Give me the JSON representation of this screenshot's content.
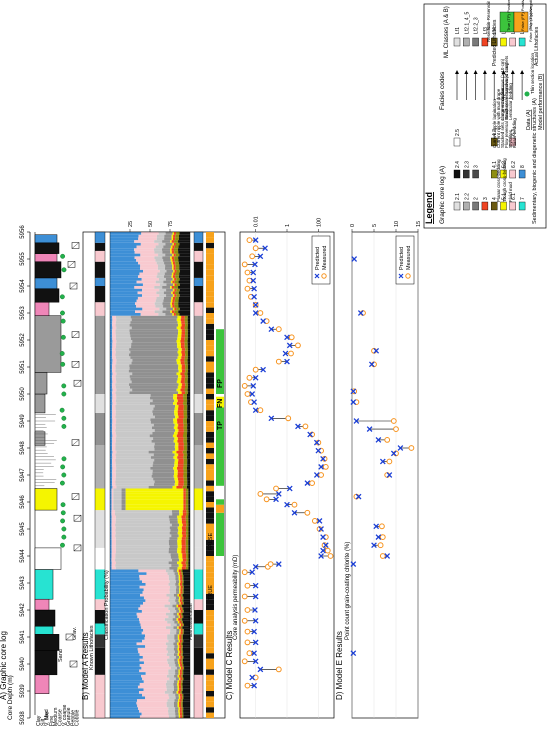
{
  "figure": {
    "panel_titles": {
      "a": "A) Graphic core log",
      "b": "B) Model A Results",
      "c": "C) Model C Results",
      "d": "D) Model E Results"
    },
    "depth_axis": {
      "label": "Core Depth (m)",
      "ticks": [
        "5938",
        "5939",
        "5940",
        "5941",
        "5942",
        "5943",
        "5944",
        "5945",
        "5946",
        "5947",
        "5948",
        "5949",
        "5950",
        "5951",
        "5952",
        "5953",
        "5954",
        "5955",
        "5956"
      ]
    },
    "grain_axis": {
      "labels": [
        "Clay",
        "Silt",
        "V. fine",
        "Fine",
        "Medium",
        "Coarse",
        "V. coarse",
        "Granule",
        "Pebble",
        "Cobble"
      ],
      "groups": [
        "Mud",
        "Sand",
        "Grav."
      ]
    },
    "model_a": {
      "known_label": "Known Lithofacies",
      "prob_label": "Classification Probability (%)",
      "prob_ticks": [
        "25",
        "50",
        "75"
      ],
      "final_label": "Final classification"
    },
    "performance_labels": {
      "true_label": "TRUE",
      "false_label": "FALSE",
      "tp": "TP",
      "fn": "FN",
      "fp": "FP"
    },
    "model_c": {
      "ylabel": "Core analysis permeability (mD)",
      "ticks": [
        "0.01",
        "1",
        "100"
      ],
      "legend": [
        "Measured",
        "Predicted"
      ]
    },
    "model_e": {
      "ylabel": "Point count grain-coating chlorite (%)",
      "ticks": [
        "0",
        "5",
        "10",
        "15"
      ],
      "legend": [
        "Measured",
        "Predicted"
      ]
    }
  },
  "legend": {
    "title": "Legend",
    "graphic_log_title": "Graphic core log (A)",
    "facies_codes_title": "Facies codes",
    "ml_classes_title": "ML Classes (A & B)",
    "facies": [
      {
        "codes": [
          "2.1",
          "2.4",
          "2.5"
        ],
        "ml": "Lf1",
        "colors": [
          "#e0e0e0",
          "#111111",
          "#ffffff"
        ]
      },
      {
        "codes": [
          "2.2",
          "2.3"
        ],
        "ml": "Lf2.1_4_5",
        "colors": [
          "#b0b0b0",
          "#333333",
          "#c8c8c8"
        ]
      },
      {
        "codes": [
          "2",
          "3"
        ],
        "ml": "Lf2.2_3",
        "colors": [
          "#7a7a7a",
          "#4a4a4a",
          "#909090"
        ]
      },
      {
        "codes": [
          "3"
        ],
        "ml": "Lf3",
        "colors": [
          "#ef4423"
        ]
      },
      {
        "codes": [
          "4",
          "4.1",
          "4.2"
        ],
        "ml": "Lf4",
        "colors": [
          "#6b5a12",
          "#8e8e10",
          "#6b5a12"
        ]
      },
      {
        "codes": [
          "5.1",
          "5.2"
        ],
        "ml": "Lf5",
        "colors": [
          "#f5f500",
          "#f5f500"
        ]
      },
      {
        "codes": [
          "6.1",
          "6.2",
          "6.3"
        ],
        "ml": "Lf6",
        "colors": [
          "#f8c9cf",
          "#f8c9cf",
          "#e8b5bd"
        ]
      },
      {
        "codes": [
          "7",
          "8"
        ],
        "ml": "Lf7_8",
        "colors": [
          "#27e3d2",
          "#3d8fd6"
        ]
      }
    ],
    "structures_title": "Sedimentary, biogenic and diagenetic structures (A)",
    "structures": [
      "Planar cross-bedding",
      "Trough cross-bedding",
      "Fluid mud",
      "Current ripple lamination",
      "Current ripple with mud drape",
      "Stacked sets of current ripples",
      "Flow reversal structures or sand-mud couplets",
      "Stylolites",
      "Flaser bedding",
      "Large-scale burrows (> 10 cm)",
      "Small-scale burrows (< 1cm)",
      "Lenticular bedding"
    ],
    "data_title": "Data (A)",
    "data_item": "Thin section location",
    "model_perf_title": "Model performance (B)",
    "predicted_label": "Predicted Lithofacies",
    "actual_label": "Actual Lithofacies",
    "reservoir": "Reservoir",
    "non_reservoir": "Non-Reservoir",
    "tp_text": "True (TP) Positive",
    "fn_text": "False (FN) Negative",
    "fp_text": "False (FP) Positive",
    "tn_text": "True (TN) Negative"
  },
  "chart_data": [
    {
      "type": "scatter",
      "title": "C) Model C Results",
      "ylabel": "Core analysis permeability (mD)",
      "log_scale": true,
      "ylim": [
        0.001,
        1000
      ],
      "x_label": "Core Depth (m)",
      "x_range": [
        5938,
        5956
      ],
      "series": [
        {
          "name": "Measured",
          "x": [
            5939.2,
            5939.5,
            5939.8,
            5940.1,
            5940.4,
            5940.8,
            5941.2,
            5941.6,
            5942.0,
            5942.5,
            5942.9,
            5943.4,
            5943.6,
            5943.7,
            5944.0,
            5944.2,
            5944.4,
            5944.7,
            5945.0,
            5945.3,
            5945.6,
            5945.9,
            5946.1,
            5946.3,
            5946.5,
            5946.7,
            5947.0,
            5947.3,
            5947.6,
            5947.9,
            5948.2,
            5948.5,
            5948.8,
            5949.1,
            5949.4,
            5949.7,
            5950.0,
            5950.3,
            5950.6,
            5950.9,
            5951.2,
            5951.5,
            5951.8,
            5952.1,
            5952.4,
            5952.7,
            5953.0,
            5953.3,
            5953.6,
            5953.9,
            5954.2,
            5954.5,
            5954.8,
            5955.1,
            5955.4,
            5955.7
          ],
          "y": [
            0.003,
            0.01,
            0.3,
            0.002,
            0.004,
            0.003,
            0.003,
            0.002,
            0.003,
            0.002,
            0.003,
            0.002,
            0.06,
            0.09,
            600,
            400,
            250,
            300,
            120,
            60,
            20,
            3,
            0.05,
            0.02,
            0.2,
            40,
            150,
            300,
            250,
            150,
            100,
            40,
            15,
            1.2,
            0.02,
            0.005,
            0.003,
            0.002,
            0.004,
            0.01,
            0.3,
            1.8,
            5,
            2,
            0.3,
            0.05,
            0.02,
            0.01,
            0.005,
            0.003,
            0.004,
            0.003,
            0.002,
            0.006,
            0.01,
            0.004
          ]
        },
        {
          "name": "Predicted",
          "x": [
            5939.2,
            5939.5,
            5939.8,
            5940.1,
            5940.4,
            5940.8,
            5941.2,
            5941.6,
            5942.0,
            5942.5,
            5942.9,
            5943.4,
            5943.6,
            5943.7,
            5944.0,
            5944.2,
            5944.4,
            5944.7,
            5945.0,
            5945.3,
            5945.6,
            5945.9,
            5946.1,
            5946.3,
            5946.5,
            5946.7,
            5947.0,
            5947.3,
            5947.6,
            5947.9,
            5948.2,
            5948.5,
            5948.8,
            5949.1,
            5949.4,
            5949.7,
            5950.0,
            5950.3,
            5950.6,
            5950.9,
            5951.2,
            5951.5,
            5951.8,
            5952.1,
            5952.4,
            5952.7,
            5953.0,
            5953.3,
            5953.6,
            5953.9,
            5954.2,
            5954.5,
            5954.8,
            5955.1,
            5955.4,
            5955.7
          ],
          "y": [
            0.008,
            0.006,
            0.02,
            0.01,
            0.008,
            0.01,
            0.008,
            0.01,
            0.009,
            0.01,
            0.01,
            0.006,
            0.01,
            0.3,
            150,
            200,
            300,
            200,
            150,
            120,
            3,
            1,
            0.2,
            0.3,
            1.5,
            20,
            80,
            150,
            200,
            100,
            80,
            30,
            5,
            0.1,
            0.01,
            0.008,
            0.006,
            0.007,
            0.01,
            0.03,
            1,
            0.8,
            1.5,
            1,
            0.1,
            0.03,
            0.01,
            0.01,
            0.008,
            0.008,
            0.007,
            0.007,
            0.009,
            0.02,
            0.04,
            0.01
          ]
        }
      ]
    },
    {
      "type": "scatter",
      "title": "D) Model E Results",
      "ylabel": "Point count grain-coating chlorite (%)",
      "ylim": [
        0,
        15
      ],
      "x_label": "Core Depth (m)",
      "x_range": [
        5938,
        5956
      ],
      "series": [
        {
          "name": "Measured",
          "x": [
            5944.0,
            5944.4,
            5944.7,
            5945.1,
            5946.2,
            5947.0,
            5947.5,
            5947.8,
            5948.0,
            5948.3,
            5948.7,
            5949.0,
            5949.7,
            5950.1,
            5951.1,
            5951.6,
            5953.0
          ],
          "y": [
            7,
            6.5,
            7,
            6.8,
            1,
            8,
            8.5,
            10,
            13.5,
            8,
            10,
            9.5,
            1,
            0.5,
            5,
            5,
            2.5
          ]
        },
        {
          "name": "Predicted",
          "x": [
            5940.4,
            5943.7,
            5944.0,
            5944.4,
            5944.7,
            5945.1,
            5946.2,
            5947.0,
            5947.5,
            5947.8,
            5948.0,
            5948.3,
            5948.7,
            5949.0,
            5949.7,
            5950.1,
            5951.1,
            5951.6,
            5953.0,
            5955.0
          ],
          "y": [
            0.3,
            0.3,
            8,
            5,
            6,
            5.5,
            1.5,
            8.5,
            7,
            9.5,
            11,
            6,
            4,
            1,
            0.3,
            0.3,
            4.5,
            5.5,
            2,
            0.5
          ]
        }
      ]
    }
  ]
}
